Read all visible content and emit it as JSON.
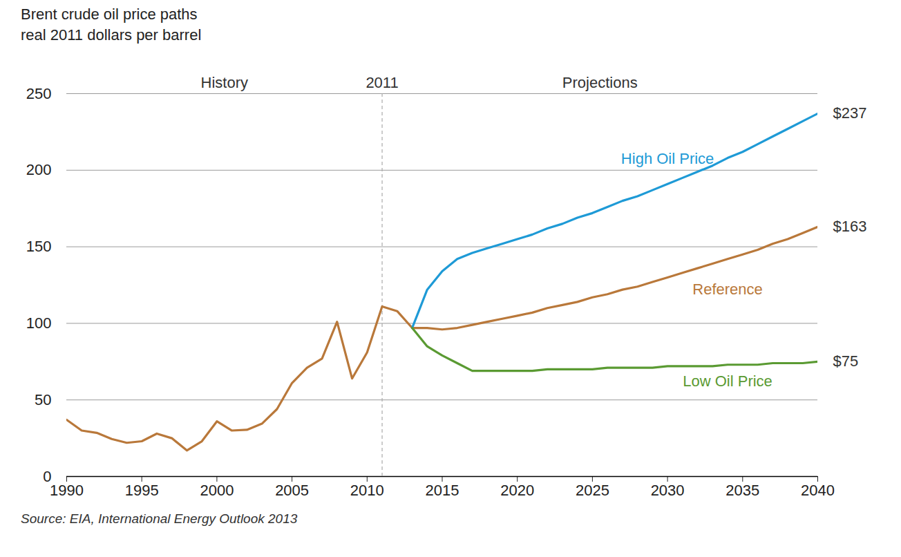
{
  "chart_data": {
    "type": "line",
    "title": "Brent crude oil price paths",
    "subtitle": "real 2011 dollars per barrel",
    "caption": "Source:  EIA, International Energy Outlook 2013",
    "annotations": [
      "History",
      "Projections"
    ],
    "divider": {
      "x": 2011,
      "label": "2011",
      "line_style": "dashed"
    },
    "x": [
      1990,
      1991,
      1992,
      1993,
      1994,
      1995,
      1996,
      1997,
      1998,
      1999,
      2000,
      2001,
      2002,
      2003,
      2004,
      2005,
      2006,
      2007,
      2008,
      2009,
      2010,
      2011,
      2012,
      2013,
      2014,
      2015,
      2016,
      2017,
      2018,
      2019,
      2020,
      2021,
      2022,
      2023,
      2024,
      2025,
      2026,
      2027,
      2028,
      2029,
      2030,
      2031,
      2032,
      2033,
      2034,
      2035,
      2036,
      2037,
      2038,
      2039,
      2040
    ],
    "series": [
      {
        "name": "Reference",
        "color": "#b9783a",
        "values": [
          37,
          30,
          28.5,
          24.5,
          22,
          23,
          28,
          25,
          17,
          23,
          36,
          30,
          30.5,
          34.5,
          44,
          61,
          71,
          77,
          101,
          64,
          81,
          111,
          108,
          97,
          97,
          96,
          97,
          99,
          101,
          103,
          105,
          107,
          110,
          112,
          114,
          117,
          119,
          122,
          124,
          127,
          130,
          133,
          136,
          139,
          142,
          145,
          148,
          152,
          155,
          159,
          163
        ],
        "value_labels": [
          null,
          null,
          null,
          null,
          null,
          null,
          null,
          null,
          null,
          null,
          null,
          null,
          null,
          null,
          null,
          null,
          null,
          null,
          null,
          null,
          null,
          null,
          null,
          null,
          null,
          null,
          null,
          null,
          null,
          null,
          null,
          null,
          null,
          null,
          null,
          null,
          null,
          null,
          null,
          null,
          null,
          null,
          null,
          null,
          null,
          null,
          null,
          null,
          null,
          null,
          "$163"
        ]
      },
      {
        "name": "High Oil Price",
        "color": "#1e9ad6",
        "values": [
          null,
          null,
          null,
          null,
          null,
          null,
          null,
          null,
          null,
          null,
          null,
          null,
          null,
          null,
          null,
          null,
          null,
          null,
          null,
          null,
          null,
          null,
          null,
          97,
          122,
          134,
          142,
          146,
          149,
          152,
          155,
          158,
          162,
          165,
          169,
          172,
          176,
          180,
          183,
          187,
          191,
          195,
          199,
          203,
          208,
          212,
          217,
          222,
          227,
          232,
          237
        ],
        "value_labels": [
          null,
          null,
          null,
          null,
          null,
          null,
          null,
          null,
          null,
          null,
          null,
          null,
          null,
          null,
          null,
          null,
          null,
          null,
          null,
          null,
          null,
          null,
          null,
          null,
          null,
          null,
          null,
          null,
          null,
          null,
          null,
          null,
          null,
          null,
          null,
          null,
          null,
          null,
          null,
          null,
          null,
          null,
          null,
          null,
          null,
          null,
          null,
          null,
          null,
          null,
          "$237"
        ]
      },
      {
        "name": "Low Oil Price",
        "color": "#5a9a32",
        "values": [
          null,
          null,
          null,
          null,
          null,
          null,
          null,
          null,
          null,
          null,
          null,
          null,
          null,
          null,
          null,
          null,
          null,
          null,
          null,
          null,
          null,
          null,
          null,
          97,
          85,
          79,
          74,
          69,
          69,
          69,
          69,
          69,
          70,
          70,
          70,
          70,
          71,
          71,
          71,
          71,
          72,
          72,
          72,
          72,
          73,
          73,
          73,
          74,
          74,
          74,
          75
        ],
        "value_labels": [
          null,
          null,
          null,
          null,
          null,
          null,
          null,
          null,
          null,
          null,
          null,
          null,
          null,
          null,
          null,
          null,
          null,
          null,
          null,
          null,
          null,
          null,
          null,
          null,
          null,
          null,
          null,
          null,
          null,
          null,
          null,
          null,
          null,
          null,
          null,
          null,
          null,
          null,
          null,
          null,
          null,
          null,
          null,
          null,
          null,
          null,
          null,
          null,
          null,
          null,
          "$75"
        ]
      }
    ],
    "xlim": [
      1990,
      2040
    ],
    "xticks": [
      1990,
      1995,
      2000,
      2005,
      2010,
      2015,
      2020,
      2025,
      2030,
      2035,
      2040
    ],
    "ylim": [
      0,
      250
    ],
    "yticks": [
      0,
      50,
      100,
      150,
      200,
      250
    ],
    "grid": true
  }
}
